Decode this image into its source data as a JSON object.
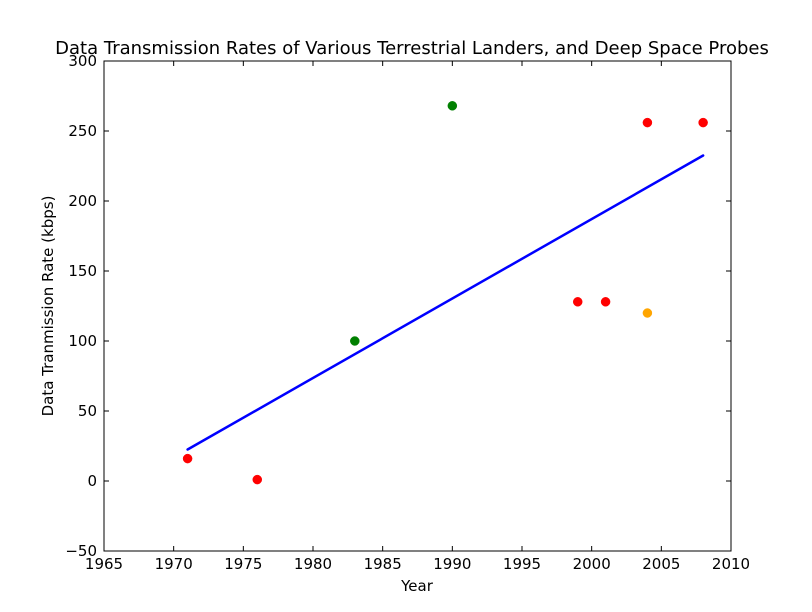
{
  "chart_data": {
    "type": "scatter",
    "title": "Data Transmission Rates of Various Terrestrial Landers, and Deep Space Probes",
    "xlabel": "Year",
    "ylabel": "Data Tranmission Rate (kbps)",
    "xlim": [
      1965,
      2010
    ],
    "ylim": [
      -50,
      300
    ],
    "xticks": [
      1965,
      1970,
      1975,
      1980,
      1985,
      1990,
      1995,
      2000,
      2005,
      2010
    ],
    "yticks": [
      -50,
      0,
      50,
      100,
      150,
      200,
      250,
      300
    ],
    "grid": false,
    "points": [
      {
        "x": 1971,
        "y": 16,
        "color": "#ff0000"
      },
      {
        "x": 1976,
        "y": 1,
        "color": "#ff0000"
      },
      {
        "x": 1983,
        "y": 100,
        "color": "#008000"
      },
      {
        "x": 1990,
        "y": 268,
        "color": "#008000"
      },
      {
        "x": 1999,
        "y": 128,
        "color": "#ff0000"
      },
      {
        "x": 2001,
        "y": 128,
        "color": "#ff0000"
      },
      {
        "x": 2004,
        "y": 120,
        "color": "#ffa500"
      },
      {
        "x": 2004,
        "y": 256,
        "color": "#ff0000"
      },
      {
        "x": 2008,
        "y": 256,
        "color": "#ff0000"
      }
    ],
    "trend_line": {
      "x": [
        1971,
        2008
      ],
      "y": [
        22.5,
        232.5
      ],
      "color": "#0000ff"
    }
  }
}
